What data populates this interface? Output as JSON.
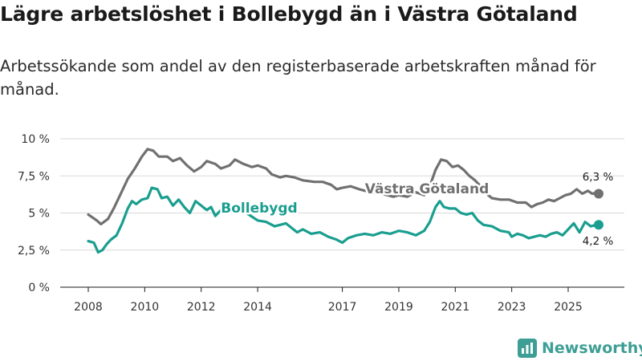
{
  "title": "Lägre arbetslöshet i Bollebygd än i Västra Götaland",
  "subtitle": "Arbetssökande som andel av den registerbaserade arbetskraften månad för månad.",
  "brand": {
    "name": "Newsworthy",
    "logo_icon": "bar-chart-icon",
    "color": "#3d9e95"
  },
  "chart_data": {
    "type": "line",
    "title": "Lägre arbetslöshet i Bollebygd än i Västra Götaland",
    "subtitle": "Arbetssökande som andel av den registerbaserade arbetskraften månad för månad.",
    "xlabel": "",
    "ylabel": "",
    "unit": "%",
    "x_range": [
      2008.0,
      2026.08
    ],
    "ylim": [
      0,
      10
    ],
    "y_ticks": [
      0,
      2.5,
      5,
      7.5,
      10
    ],
    "y_tick_labels": [
      "0 %",
      "2,5 %",
      "5 %",
      "7,5 %",
      "10 %"
    ],
    "x_ticks": [
      2008,
      2010,
      2012,
      2014,
      2017,
      2019,
      2021,
      2023,
      2025
    ],
    "x_tick_labels": [
      "2008",
      "2010",
      "2012",
      "2014",
      "2017",
      "2019",
      "2021",
      "2023",
      "2025"
    ],
    "grid": true,
    "legend": "direct labels on lines",
    "series": [
      {
        "name": "Västra Götaland",
        "color": "#707070",
        "end_label": "6,3 %",
        "points": [
          [
            2008.0,
            4.9
          ],
          [
            2008.3,
            4.5
          ],
          [
            2008.45,
            4.25
          ],
          [
            2008.7,
            4.6
          ],
          [
            2008.9,
            5.3
          ],
          [
            2009.15,
            6.3
          ],
          [
            2009.4,
            7.3
          ],
          [
            2009.65,
            8.0
          ],
          [
            2009.9,
            8.8
          ],
          [
            2010.1,
            9.3
          ],
          [
            2010.3,
            9.2
          ],
          [
            2010.5,
            8.8
          ],
          [
            2010.8,
            8.8
          ],
          [
            2011.0,
            8.5
          ],
          [
            2011.25,
            8.7
          ],
          [
            2011.5,
            8.2
          ],
          [
            2011.75,
            7.8
          ],
          [
            2012.0,
            8.1
          ],
          [
            2012.2,
            8.5
          ],
          [
            2012.5,
            8.3
          ],
          [
            2012.7,
            8.0
          ],
          [
            2013.0,
            8.2
          ],
          [
            2013.2,
            8.6
          ],
          [
            2013.5,
            8.3
          ],
          [
            2013.8,
            8.1
          ],
          [
            2014.0,
            8.2
          ],
          [
            2014.3,
            8.0
          ],
          [
            2014.5,
            7.6
          ],
          [
            2014.8,
            7.4
          ],
          [
            2015.0,
            7.5
          ],
          [
            2015.3,
            7.4
          ],
          [
            2015.6,
            7.2
          ],
          [
            2016.0,
            7.1
          ],
          [
            2016.3,
            7.1
          ],
          [
            2016.6,
            6.9
          ],
          [
            2016.8,
            6.6
          ],
          [
            2017.0,
            6.7
          ],
          [
            2017.3,
            6.8
          ],
          [
            2017.6,
            6.6
          ],
          [
            2018.0,
            6.4
          ],
          [
            2018.4,
            6.3
          ],
          [
            2018.8,
            6.1
          ],
          [
            2019.0,
            6.2
          ],
          [
            2019.3,
            6.1
          ],
          [
            2019.6,
            6.4
          ],
          [
            2019.9,
            6.2
          ],
          [
            2020.1,
            6.8
          ],
          [
            2020.3,
            7.9
          ],
          [
            2020.5,
            8.6
          ],
          [
            2020.7,
            8.5
          ],
          [
            2020.9,
            8.1
          ],
          [
            2021.1,
            8.2
          ],
          [
            2021.3,
            7.9
          ],
          [
            2021.5,
            7.5
          ],
          [
            2021.7,
            7.2
          ],
          [
            2021.9,
            6.8
          ],
          [
            2022.1,
            6.3
          ],
          [
            2022.3,
            6.0
          ],
          [
            2022.6,
            5.9
          ],
          [
            2022.9,
            5.9
          ],
          [
            2023.2,
            5.7
          ],
          [
            2023.5,
            5.7
          ],
          [
            2023.7,
            5.4
          ],
          [
            2023.9,
            5.6
          ],
          [
            2024.1,
            5.7
          ],
          [
            2024.3,
            5.9
          ],
          [
            2024.5,
            5.8
          ],
          [
            2024.7,
            6.0
          ],
          [
            2024.9,
            6.2
          ],
          [
            2025.1,
            6.3
          ],
          [
            2025.3,
            6.6
          ],
          [
            2025.5,
            6.3
          ],
          [
            2025.7,
            6.5
          ],
          [
            2025.85,
            6.3
          ],
          [
            2026.0,
            6.35
          ],
          [
            2026.08,
            6.3
          ]
        ]
      },
      {
        "name": "Bollebygd",
        "color": "#1a9e8f",
        "end_label": "4,2 %",
        "points": [
          [
            2008.0,
            3.1
          ],
          [
            2008.2,
            3.0
          ],
          [
            2008.35,
            2.35
          ],
          [
            2008.5,
            2.5
          ],
          [
            2008.65,
            2.9
          ],
          [
            2008.8,
            3.2
          ],
          [
            2009.0,
            3.5
          ],
          [
            2009.2,
            4.3
          ],
          [
            2009.4,
            5.3
          ],
          [
            2009.55,
            5.8
          ],
          [
            2009.7,
            5.6
          ],
          [
            2009.9,
            5.9
          ],
          [
            2010.1,
            6.0
          ],
          [
            2010.25,
            6.7
          ],
          [
            2010.45,
            6.6
          ],
          [
            2010.6,
            6.0
          ],
          [
            2010.8,
            6.1
          ],
          [
            2011.0,
            5.5
          ],
          [
            2011.2,
            5.9
          ],
          [
            2011.4,
            5.4
          ],
          [
            2011.6,
            5.0
          ],
          [
            2011.8,
            5.8
          ],
          [
            2012.0,
            5.5
          ],
          [
            2012.2,
            5.2
          ],
          [
            2012.35,
            5.4
          ],
          [
            2012.5,
            4.8
          ],
          [
            2012.7,
            5.2
          ],
          [
            2013.0,
            5.4
          ],
          [
            2013.3,
            5.2
          ],
          [
            2013.6,
            5.0
          ],
          [
            2014.0,
            4.5
          ],
          [
            2014.3,
            4.4
          ],
          [
            2014.6,
            4.1
          ],
          [
            2015.0,
            4.3
          ],
          [
            2015.2,
            4.0
          ],
          [
            2015.4,
            3.7
          ],
          [
            2015.6,
            3.9
          ],
          [
            2015.9,
            3.6
          ],
          [
            2016.2,
            3.7
          ],
          [
            2016.5,
            3.4
          ],
          [
            2016.8,
            3.2
          ],
          [
            2017.0,
            3.0
          ],
          [
            2017.2,
            3.3
          ],
          [
            2017.5,
            3.5
          ],
          [
            2017.8,
            3.6
          ],
          [
            2018.1,
            3.5
          ],
          [
            2018.4,
            3.7
          ],
          [
            2018.7,
            3.6
          ],
          [
            2019.0,
            3.8
          ],
          [
            2019.3,
            3.7
          ],
          [
            2019.6,
            3.5
          ],
          [
            2019.9,
            3.8
          ],
          [
            2020.1,
            4.4
          ],
          [
            2020.3,
            5.4
          ],
          [
            2020.45,
            5.8
          ],
          [
            2020.6,
            5.4
          ],
          [
            2020.8,
            5.3
          ],
          [
            2021.0,
            5.3
          ],
          [
            2021.2,
            5.0
          ],
          [
            2021.4,
            4.9
          ],
          [
            2021.6,
            5.0
          ],
          [
            2021.8,
            4.5
          ],
          [
            2022.0,
            4.2
          ],
          [
            2022.3,
            4.1
          ],
          [
            2022.6,
            3.8
          ],
          [
            2022.9,
            3.7
          ],
          [
            2023.0,
            3.4
          ],
          [
            2023.2,
            3.6
          ],
          [
            2023.4,
            3.5
          ],
          [
            2023.6,
            3.3
          ],
          [
            2023.8,
            3.4
          ],
          [
            2024.0,
            3.5
          ],
          [
            2024.2,
            3.4
          ],
          [
            2024.4,
            3.6
          ],
          [
            2024.6,
            3.7
          ],
          [
            2024.8,
            3.5
          ],
          [
            2025.0,
            3.9
          ],
          [
            2025.2,
            4.3
          ],
          [
            2025.4,
            3.7
          ],
          [
            2025.6,
            4.4
          ],
          [
            2025.8,
            4.1
          ],
          [
            2026.0,
            4.2
          ],
          [
            2026.08,
            4.2
          ]
        ]
      }
    ]
  }
}
